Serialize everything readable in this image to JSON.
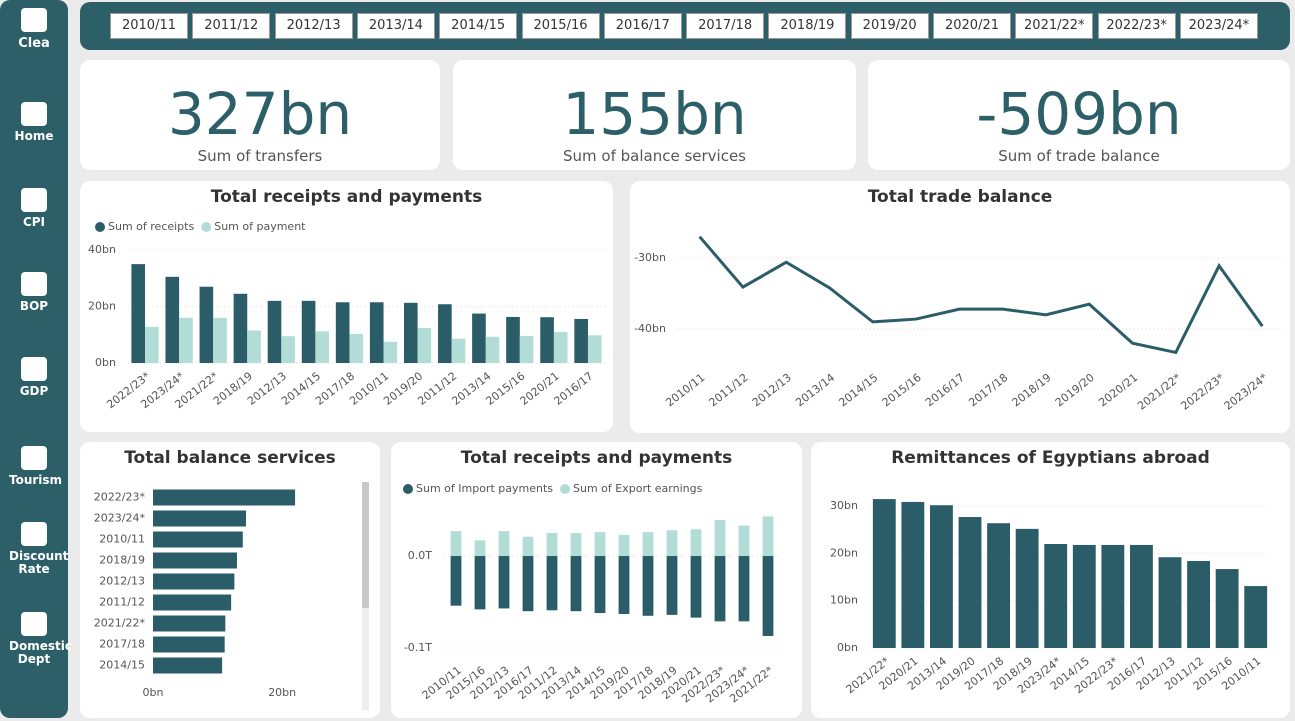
{
  "sidebar": {
    "logo": "Clea",
    "items": [
      "Home",
      "CPI",
      "BOP",
      "GDP",
      "Tourism",
      "Discount Rate",
      "Domestic Dept"
    ]
  },
  "slicer": [
    "2010/11",
    "2011/12",
    "2012/13",
    "2013/14",
    "2014/15",
    "2015/16",
    "2016/17",
    "2017/18",
    "2018/19",
    "2019/20",
    "2020/21",
    "2021/22*",
    "2022/23*",
    "2023/24*"
  ],
  "kpis": [
    {
      "value": "327bn",
      "label": "Sum of transfers"
    },
    {
      "value": "155bn",
      "label": "Sum of balance services"
    },
    {
      "value": "-509bn",
      "label": "Sum of trade balance"
    }
  ],
  "chart_data": [
    {
      "type": "bar",
      "title": "Total receipts and payments",
      "categories": [
        "2022/23*",
        "2023/24*",
        "2021/22*",
        "2018/19",
        "2012/13",
        "2014/15",
        "2017/18",
        "2010/11",
        "2019/20",
        "2011/12",
        "2013/14",
        "2015/16",
        "2020/21",
        "2016/17"
      ],
      "series": [
        {
          "name": "Sum of receipts",
          "color": "#2a5d67",
          "values": [
            35,
            30.5,
            27,
            24.5,
            22,
            22,
            21.5,
            21.5,
            21.3,
            20.8,
            17.5,
            16.3,
            16.2,
            15.6
          ]
        },
        {
          "name": "Sum of payment",
          "color": "#b2dcd6",
          "values": [
            12.8,
            16,
            16,
            11.5,
            9.5,
            11.2,
            10.3,
            7.5,
            12.4,
            8.6,
            9.3,
            9.6,
            11,
            9.8
          ]
        }
      ],
      "ylim": [
        0,
        40
      ],
      "yticks": [
        {
          "value": 0,
          "label": "0bn"
        },
        {
          "value": 20,
          "label": "20bn"
        },
        {
          "value": 40,
          "label": "40bn"
        }
      ],
      "grid": true
    },
    {
      "type": "line",
      "title": "Total trade balance",
      "categories": [
        "2010/11",
        "2011/12",
        "2012/13",
        "2013/14",
        "2014/15",
        "2015/16",
        "2016/17",
        "2017/18",
        "2018/19",
        "2019/20",
        "2020/21",
        "2021/22*",
        "2022/23*",
        "2023/24*"
      ],
      "series": [
        {
          "name": "Sum of trade balance",
          "color": "#2a5d67",
          "values": [
            -27.0,
            -34.1,
            -30.6,
            -34.2,
            -39.0,
            -38.6,
            -37.2,
            -37.2,
            -38.0,
            -36.5,
            -42.0,
            -43.3,
            -31.1,
            -39.6
          ]
        }
      ],
      "ylim": [
        -45,
        -25
      ],
      "yticks": [
        {
          "value": -40,
          "label": "-40bn"
        },
        {
          "value": -30,
          "label": "-30bn"
        }
      ],
      "grid": true
    },
    {
      "type": "barh",
      "title": "Total balance services",
      "categories": [
        "2022/23*",
        "2023/24*",
        "2010/11",
        "2018/19",
        "2012/13",
        "2011/12",
        "2021/22*",
        "2017/18",
        "2014/15"
      ],
      "values": [
        22.0,
        14.4,
        13.9,
        13.0,
        12.6,
        12.1,
        11.2,
        11.1,
        10.7
      ],
      "color": "#2a5d67",
      "xlim": [
        0,
        24
      ],
      "xticks": [
        {
          "value": 0,
          "label": "0bn"
        },
        {
          "value": 20,
          "label": "20bn"
        }
      ]
    },
    {
      "type": "bar",
      "stacked": true,
      "title": "Total receipts and payments",
      "categories": [
        "2010/11",
        "2015/16",
        "2012/13",
        "2016/17",
        "2011/12",
        "2013/14",
        "2014/15",
        "2019/20",
        "2017/18",
        "2018/19",
        "2020/21",
        "2022/23*",
        "2023/24*",
        "2021/22*"
      ],
      "series": [
        {
          "name": "Sum of Import payments",
          "color": "#2a5d67",
          "values": [
            -0.054,
            -0.058,
            -0.057,
            -0.06,
            -0.059,
            -0.06,
            -0.062,
            -0.063,
            -0.065,
            -0.064,
            -0.067,
            -0.071,
            -0.071,
            -0.087
          ]
        },
        {
          "name": "Sum of Export earnings",
          "color": "#b2dcd6",
          "values": [
            0.027,
            0.017,
            0.027,
            0.021,
            0.025,
            0.025,
            0.026,
            0.023,
            0.026,
            0.028,
            0.029,
            0.039,
            0.033,
            0.043
          ]
        }
      ],
      "ylim": [
        -0.11,
        0.05
      ],
      "yticks": [
        {
          "value": -0.1,
          "label": "-0.1T"
        },
        {
          "value": 0,
          "label": "0.0T"
        }
      ],
      "grid": true
    },
    {
      "type": "bar",
      "title": "Remittances of Egyptians abroad",
      "categories": [
        "2021/22*",
        "2020/21",
        "2013/14",
        "2019/20",
        "2017/18",
        "2018/19",
        "2023/24*",
        "2014/15",
        "2022/23*",
        "2016/17",
        "2012/13",
        "2011/12",
        "2015/16",
        "2010/11"
      ],
      "series": [
        {
          "name": "Remittances",
          "color": "#2a5d67",
          "values": [
            31.5,
            30.9,
            30.2,
            27.7,
            26.4,
            25.2,
            22.0,
            21.8,
            21.8,
            21.8,
            19.2,
            18.4,
            16.7,
            13.1
          ]
        }
      ],
      "ylim": [
        0,
        33
      ],
      "yticks": [
        {
          "value": 0,
          "label": "0bn"
        },
        {
          "value": 10,
          "label": "10bn"
        },
        {
          "value": 20,
          "label": "20bn"
        },
        {
          "value": 30,
          "label": "30bn"
        }
      ],
      "grid": true,
      "legend": false
    }
  ]
}
